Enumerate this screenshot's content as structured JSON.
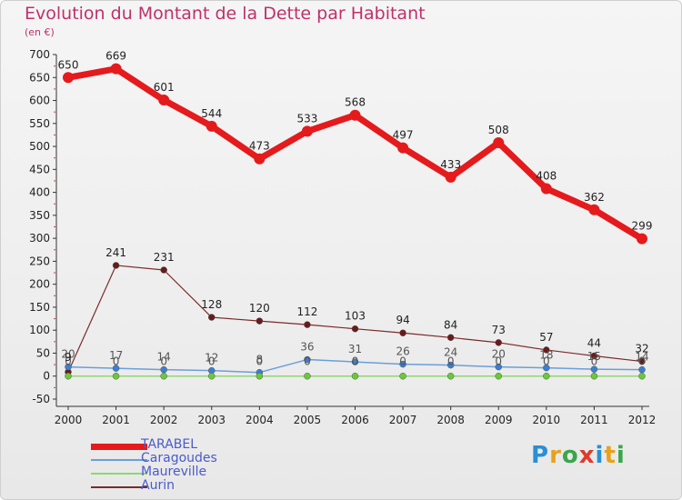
{
  "header": {
    "title": "Evolution du Montant de la Dette par Habitant",
    "unit": "(en €)"
  },
  "logo": {
    "text": "Proxiti",
    "letter_colors": [
      "#2a8fd4",
      "#e8a21a",
      "#3aa64a",
      "#e03a2a",
      "#2a8fd4",
      "#e8a21a",
      "#3aa64a"
    ]
  },
  "chart_data": {
    "type": "line",
    "title": "Evolution du Montant de la Dette par Habitant",
    "ylabel": "(en €)",
    "xlabel": "",
    "x": [
      "2000",
      "2001",
      "2002",
      "2003",
      "2004",
      "2005",
      "2006",
      "2007",
      "2008",
      "2009",
      "2010",
      "2011",
      "2012"
    ],
    "ylim": [
      -50,
      700
    ],
    "yticks": [
      -50,
      0,
      50,
      100,
      150,
      200,
      250,
      300,
      350,
      400,
      450,
      500,
      550,
      600,
      650,
      700
    ],
    "grid": false,
    "legend_position": "bottom-left",
    "series": [
      {
        "name": "TARABEL",
        "color": "#e41a1c",
        "width": 7,
        "point_color": "#e41a1c",
        "labels": true,
        "values": [
          650,
          669,
          601,
          544,
          473,
          533,
          568,
          497,
          433,
          508,
          408,
          362,
          299
        ]
      },
      {
        "name": "Caragoudes",
        "color": "#6a9fd8",
        "width": 1.5,
        "point_color": "#3a7fd0",
        "labels": true,
        "values": [
          20,
          17,
          14,
          12,
          8,
          36,
          31,
          26,
          24,
          20,
          18,
          15,
          14
        ]
      },
      {
        "name": "Maureville",
        "color": "#8fd86a",
        "width": 1.5,
        "point_color": "#6ac83a",
        "labels": true,
        "values": [
          0,
          0,
          0,
          0,
          0,
          0,
          0,
          0,
          0,
          0,
          0,
          0,
          0
        ]
      },
      {
        "name": "Aurin",
        "color": "#7a2a2a",
        "width": 1.2,
        "point_color": "#6a1a1a",
        "labels": true,
        "values": [
          9,
          241,
          231,
          128,
          120,
          112,
          103,
          94,
          84,
          73,
          57,
          44,
          32
        ]
      }
    ]
  }
}
